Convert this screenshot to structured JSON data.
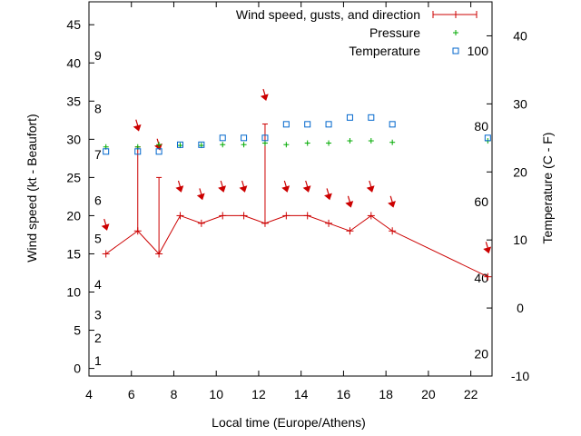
{
  "chart_data": {
    "type": "line",
    "xlabel": "Local time (Europe/Athens)",
    "ylabel": "Wind speed (kt - Beaufort)",
    "y2label": "Temperature (C - F)",
    "xlim": [
      4,
      23
    ],
    "ylim": [
      -1,
      48
    ],
    "y2lim": [
      -10,
      45
    ],
    "xticks": [
      4,
      6,
      8,
      10,
      12,
      14,
      16,
      18,
      20,
      22
    ],
    "yticks": [
      0,
      5,
      10,
      15,
      20,
      25,
      30,
      35,
      40,
      45
    ],
    "y2ticks": [
      -10,
      0,
      10,
      20,
      30,
      40
    ],
    "legend_position": "top-right",
    "legend": [
      "Wind speed, gusts, and direction",
      "Pressure",
      "Temperature"
    ],
    "beaufort_scale": [
      {
        "label": "1",
        "kt": 1
      },
      {
        "label": "2",
        "kt": 4
      },
      {
        "label": "3",
        "kt": 7
      },
      {
        "label": "4",
        "kt": 11
      },
      {
        "label": "5",
        "kt": 17
      },
      {
        "label": "6",
        "kt": 22
      },
      {
        "label": "7",
        "kt": 28
      },
      {
        "label": "8",
        "kt": 34
      },
      {
        "label": "9",
        "kt": 41
      }
    ],
    "fahrenheit_scale": [
      {
        "label": "20",
        "c": -6.7
      },
      {
        "label": "40",
        "c": 4.4
      },
      {
        "label": "60",
        "c": 15.6
      },
      {
        "label": "80",
        "c": 26.7
      },
      {
        "label": "100",
        "c": 37.8
      }
    ],
    "series": [
      {
        "name": "Wind speed, gusts, and direction",
        "color": "#cc0000",
        "x": [
          4.8,
          6.3,
          7.3,
          8.3,
          9.3,
          10.3,
          11.3,
          12.3,
          13.3,
          14.3,
          15.3,
          16.3,
          17.3,
          18.3,
          22.8
        ],
        "y": [
          15,
          18,
          15,
          20,
          19,
          20,
          20,
          19,
          20,
          20,
          19,
          18,
          20,
          18,
          12
        ],
        "gusts": [
          null,
          29,
          25,
          null,
          null,
          null,
          null,
          32,
          null,
          null,
          null,
          null,
          null,
          null,
          null
        ],
        "arrow_kt": [
          18.5,
          31.5,
          29,
          23.5,
          22.5,
          23.5,
          23.5,
          35.5,
          23.5,
          23.5,
          22.5,
          21.5,
          23.5,
          21.5,
          15.5
        ]
      },
      {
        "name": "Pressure",
        "color": "#00aa00",
        "x": [
          4.8,
          6.3,
          7.3,
          8.3,
          9.3,
          10.3,
          11.3,
          12.3,
          13.3,
          14.3,
          15.3,
          16.3,
          17.3,
          18.3,
          22.8
        ],
        "y": [
          29,
          29,
          29.3,
          29.2,
          29.2,
          29.3,
          29.3,
          29.5,
          29.3,
          29.5,
          29.5,
          29.8,
          29.8,
          29.6,
          29.8
        ]
      },
      {
        "name": "Temperature",
        "color": "#0066cc",
        "axis": "y2",
        "x": [
          4.8,
          6.3,
          7.3,
          8.3,
          9.3,
          10.3,
          11.3,
          12.3,
          13.3,
          14.3,
          15.3,
          16.3,
          17.3,
          18.3,
          22.8
        ],
        "y": [
          23,
          23,
          23,
          24,
          24,
          25,
          25,
          25,
          27,
          27,
          27,
          28,
          28,
          27,
          25
        ]
      }
    ]
  }
}
